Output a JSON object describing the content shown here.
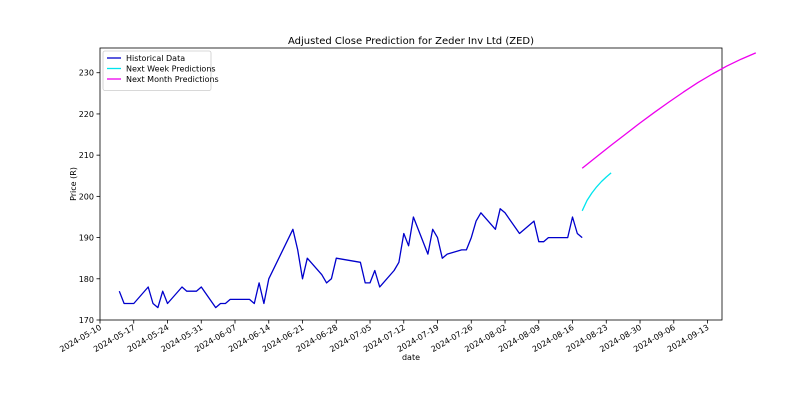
{
  "chart_data": {
    "type": "line",
    "title": "Adjusted Close Prediction for Zeder Inv Ltd (ZED)",
    "xlabel": "date",
    "ylabel": "Price (R)",
    "x_axis": "date",
    "xlim": [
      "2024-05-10",
      "2024-09-16"
    ],
    "ylim": [
      170,
      236
    ],
    "grid": false,
    "legend_position": "top-left",
    "x_ticks": [
      "2024-05-10",
      "2024-05-17",
      "2024-05-24",
      "2024-05-31",
      "2024-06-07",
      "2024-06-14",
      "2024-06-21",
      "2024-06-28",
      "2024-07-05",
      "2024-07-12",
      "2024-07-19",
      "2024-07-26",
      "2024-08-02",
      "2024-08-09",
      "2024-08-16",
      "2024-08-23",
      "2024-08-30",
      "2024-09-06",
      "2024-09-13"
    ],
    "y_ticks": [
      170,
      180,
      190,
      200,
      210,
      220,
      230
    ],
    "series": [
      {
        "name": "Historical Data",
        "color": "#0000cc",
        "points": [
          [
            "2024-05-14",
            177
          ],
          [
            "2024-05-15",
            174
          ],
          [
            "2024-05-16",
            174
          ],
          [
            "2024-05-17",
            174
          ],
          [
            "2024-05-20",
            178
          ],
          [
            "2024-05-21",
            174
          ],
          [
            "2024-05-22",
            173
          ],
          [
            "2024-05-23",
            177
          ],
          [
            "2024-05-24",
            174
          ],
          [
            "2024-05-27",
            178
          ],
          [
            "2024-05-28",
            177
          ],
          [
            "2024-05-29",
            177
          ],
          [
            "2024-05-30",
            177
          ],
          [
            "2024-05-31",
            178
          ],
          [
            "2024-06-03",
            173
          ],
          [
            "2024-06-04",
            174
          ],
          [
            "2024-06-05",
            174
          ],
          [
            "2024-06-06",
            175
          ],
          [
            "2024-06-07",
            175
          ],
          [
            "2024-06-10",
            175
          ],
          [
            "2024-06-11",
            174
          ],
          [
            "2024-06-12",
            179
          ],
          [
            "2024-06-13",
            174
          ],
          [
            "2024-06-14",
            180
          ],
          [
            "2024-06-19",
            192
          ],
          [
            "2024-06-20",
            187
          ],
          [
            "2024-06-21",
            180
          ],
          [
            "2024-06-22",
            185
          ],
          [
            "2024-06-25",
            181
          ],
          [
            "2024-06-26",
            179
          ],
          [
            "2024-06-27",
            180
          ],
          [
            "2024-06-28",
            185
          ],
          [
            "2024-07-03",
            184
          ],
          [
            "2024-07-04",
            179
          ],
          [
            "2024-07-05",
            179
          ],
          [
            "2024-07-06",
            182
          ],
          [
            "2024-07-07",
            178
          ],
          [
            "2024-07-10",
            182
          ],
          [
            "2024-07-11",
            184
          ],
          [
            "2024-07-12",
            191
          ],
          [
            "2024-07-13",
            188
          ],
          [
            "2024-07-14",
            195
          ],
          [
            "2024-07-17",
            186
          ],
          [
            "2024-07-18",
            192
          ],
          [
            "2024-07-19",
            190
          ],
          [
            "2024-07-20",
            185
          ],
          [
            "2024-07-21",
            186
          ],
          [
            "2024-07-24",
            187
          ],
          [
            "2024-07-25",
            187
          ],
          [
            "2024-07-26",
            190
          ],
          [
            "2024-07-27",
            194
          ],
          [
            "2024-07-28",
            196
          ],
          [
            "2024-07-31",
            192
          ],
          [
            "2024-08-01",
            197
          ],
          [
            "2024-08-02",
            196
          ],
          [
            "2024-08-05",
            191
          ],
          [
            "2024-08-08",
            194
          ],
          [
            "2024-08-09",
            189
          ],
          [
            "2024-08-10",
            189
          ],
          [
            "2024-08-11",
            190
          ],
          [
            "2024-08-14",
            190
          ],
          [
            "2024-08-15",
            190
          ],
          [
            "2024-08-16",
            195
          ],
          [
            "2024-08-17",
            191
          ],
          [
            "2024-08-18",
            190
          ]
        ]
      },
      {
        "name": "Next Week Predictions",
        "color": "#00e5ee",
        "points": [
          [
            "2024-08-18",
            196.5
          ],
          [
            "2024-08-19",
            199.0
          ],
          [
            "2024-08-20",
            200.8
          ],
          [
            "2024-08-21",
            202.3
          ],
          [
            "2024-08-22",
            203.6
          ],
          [
            "2024-08-23",
            204.7
          ],
          [
            "2024-08-24",
            205.7
          ]
        ]
      },
      {
        "name": "Next Month Predictions",
        "color": "#ee00ee",
        "points": [
          [
            "2024-08-18",
            206.8
          ],
          [
            "2024-08-21",
            209.6
          ],
          [
            "2024-08-24",
            212.4
          ],
          [
            "2024-08-27",
            215.1
          ],
          [
            "2024-08-30",
            217.8
          ],
          [
            "2024-09-02",
            220.4
          ],
          [
            "2024-09-05",
            222.9
          ],
          [
            "2024-09-08",
            225.3
          ],
          [
            "2024-09-11",
            227.6
          ],
          [
            "2024-09-14",
            229.7
          ],
          [
            "2024-09-17",
            231.6
          ],
          [
            "2024-09-20",
            233.3
          ],
          [
            "2024-09-23",
            234.8
          ]
        ]
      }
    ]
  }
}
